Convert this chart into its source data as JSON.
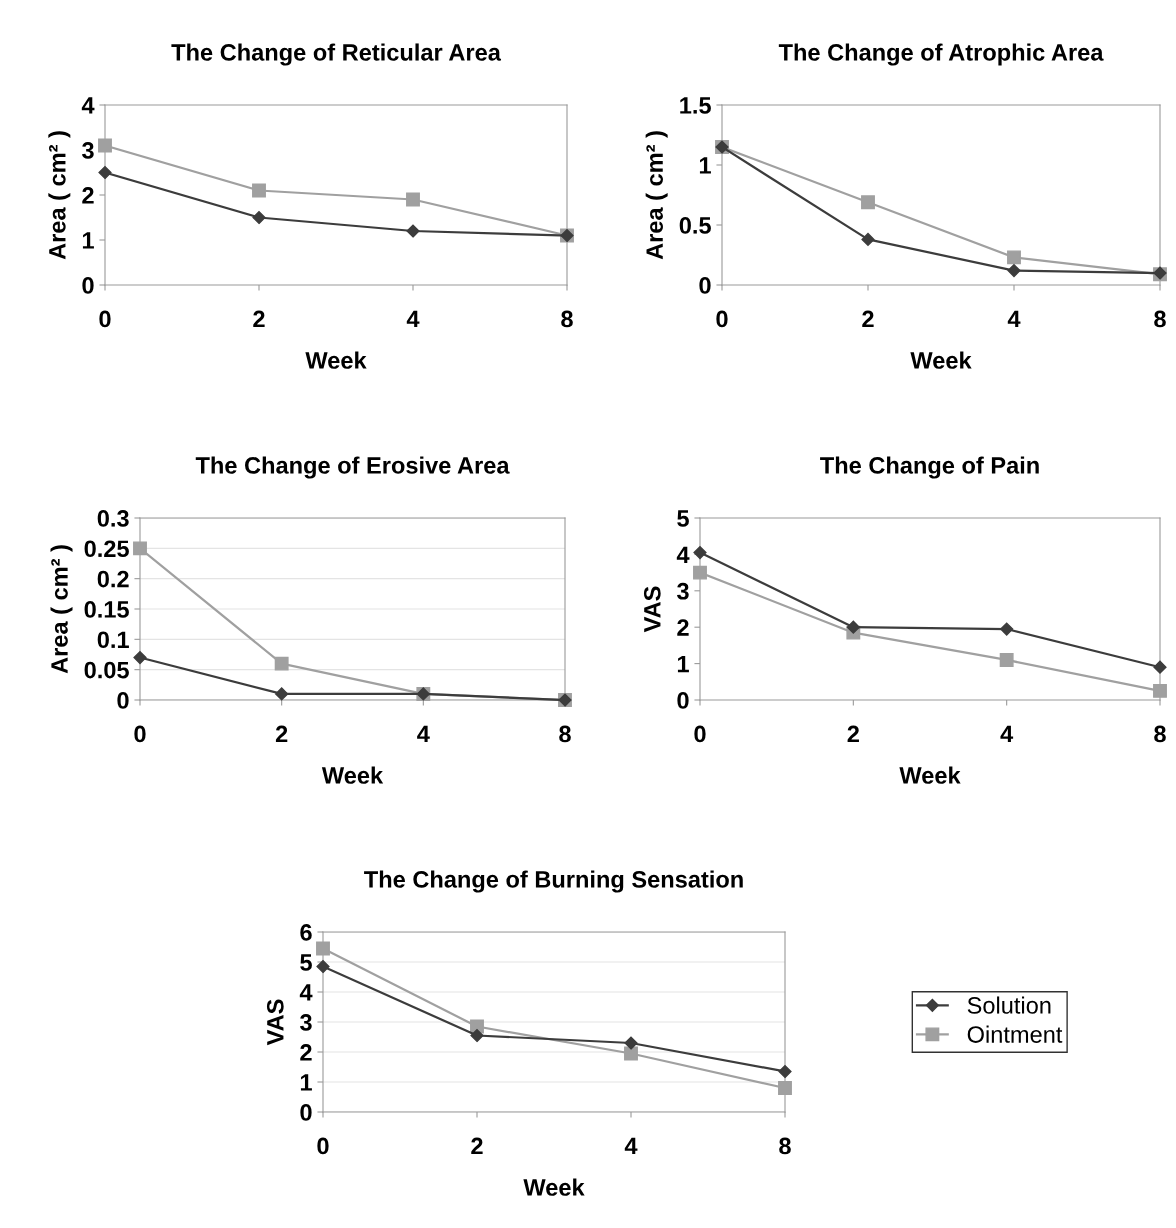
{
  "chart_data": [
    {
      "type": "line",
      "title": "The Change of Reticular Area",
      "xlabel": "Week",
      "ylabel": "Area ( cm² )",
      "categories": [
        "0",
        "2",
        "4",
        "8"
      ],
      "ylim": [
        0,
        4
      ],
      "yticks": [
        0,
        1,
        2,
        3,
        4
      ],
      "grid": false,
      "legend": false,
      "series": [
        {
          "color": "#3c3c3c",
          "marker": "diamond",
          "values": [
            2.5,
            1.5,
            1.2,
            1.1
          ]
        },
        {
          "color": "#a0a0a0",
          "marker": "square",
          "values": [
            3.1,
            2.1,
            1.9,
            1.1
          ]
        }
      ]
    },
    {
      "type": "line",
      "title": "The Change of Atrophic Area",
      "xlabel": "Week",
      "ylabel": "Area ( cm² )",
      "categories": [
        "0",
        "2",
        "4",
        "8"
      ],
      "ylim": [
        0,
        1.5
      ],
      "yticks": [
        0,
        {
          "value": 0.5,
          "label": "0.5"
        },
        1,
        {
          "value": 1.5,
          "label": "1.5"
        }
      ],
      "grid": false,
      "legend": false,
      "series": [
        {
          "color": "#3c3c3c",
          "marker": "diamond",
          "values": [
            1.15,
            0.38,
            0.12,
            0.1
          ]
        },
        {
          "color": "#a0a0a0",
          "marker": "square",
          "values": [
            1.15,
            0.69,
            0.23,
            0.09
          ]
        }
      ]
    },
    {
      "type": "line",
      "title": "The Change of Erosive Area",
      "xlabel": "Week",
      "ylabel": "Area ( cm² )",
      "categories": [
        "0",
        "2",
        "4",
        "8"
      ],
      "ylim": [
        0,
        0.3
      ],
      "yticks": [
        0,
        {
          "value": 0.05,
          "label": "0.05"
        },
        {
          "value": 0.1,
          "label": "0.1"
        },
        {
          "value": 0.15,
          "label": "0.15"
        },
        {
          "value": 0.2,
          "label": "0.2"
        },
        {
          "value": 0.25,
          "label": "0.25"
        },
        {
          "value": 0.3,
          "label": "0.3"
        }
      ],
      "grid": "y",
      "legend": false,
      "series": [
        {
          "color": "#3c3c3c",
          "marker": "diamond",
          "values": [
            0.07,
            0.01,
            0.01,
            0.0
          ]
        },
        {
          "color": "#a0a0a0",
          "marker": "square",
          "values": [
            0.25,
            0.06,
            0.01,
            0.0
          ]
        }
      ]
    },
    {
      "type": "line",
      "title": "The Change of Pain",
      "xlabel": "Week",
      "ylabel": "VAS",
      "categories": [
        "0",
        "2",
        "4",
        "8"
      ],
      "ylim": [
        0,
        5
      ],
      "yticks": [
        0,
        1,
        2,
        3,
        4,
        5
      ],
      "grid": false,
      "legend": false,
      "series": [
        {
          "color": "#3c3c3c",
          "marker": "diamond",
          "values": [
            4.05,
            2.0,
            1.95,
            0.9
          ]
        },
        {
          "color": "#a0a0a0",
          "marker": "square",
          "values": [
            3.5,
            1.85,
            1.1,
            0.25
          ]
        }
      ]
    },
    {
      "type": "line",
      "title": "The Change of Burning Sensation",
      "xlabel": "Week",
      "ylabel": "VAS",
      "categories": [
        "0",
        "2",
        "4",
        "8"
      ],
      "ylim": [
        0,
        6
      ],
      "yticks": [
        0,
        1,
        2,
        3,
        4,
        5,
        6
      ],
      "grid": "y",
      "legend": "right",
      "series": [
        {
          "name": "Solution",
          "color": "#3c3c3c",
          "marker": "diamond",
          "values": [
            4.85,
            2.55,
            2.3,
            1.35
          ]
        },
        {
          "name": "Ointment",
          "color": "#a0a0a0",
          "marker": "square",
          "values": [
            5.45,
            2.85,
            1.95,
            0.8
          ]
        }
      ]
    }
  ]
}
